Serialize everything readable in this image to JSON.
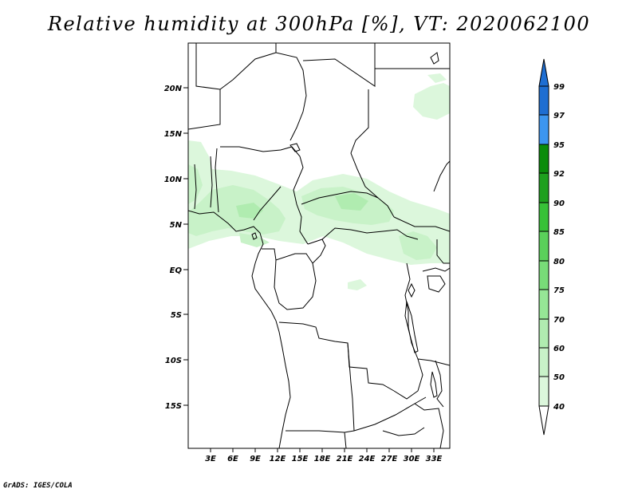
{
  "title": "Relative humidity at 300hPa [%], VT: 2020062100",
  "credit": "GrADS: IGES/COLA",
  "map": {
    "lat_labels": [
      "20N",
      "15N",
      "10N",
      "5N",
      "EQ",
      "5S",
      "10S",
      "15S"
    ],
    "lon_labels": [
      "3E",
      "6E",
      "9E",
      "12E",
      "15E",
      "18E",
      "21E",
      "24E",
      "27E",
      "30E",
      "33E"
    ]
  },
  "colorbar": {
    "levels": [
      "40",
      "50",
      "60",
      "70",
      "75",
      "80",
      "85",
      "90",
      "92",
      "95",
      "97",
      "99"
    ],
    "colors": {
      "c40": "#f0fcf0",
      "c50": "#dcf7dc",
      "c60": "#c8f2c8",
      "c70": "#b0ecb0",
      "c75": "#96e696",
      "c80": "#78dc78",
      "c85": "#5ad05a",
      "c90": "#37c137",
      "c92": "#1ea01e",
      "c95": "#0a8c0a",
      "c97": "#3c96f0",
      "c99": "#1e6ed2"
    }
  }
}
